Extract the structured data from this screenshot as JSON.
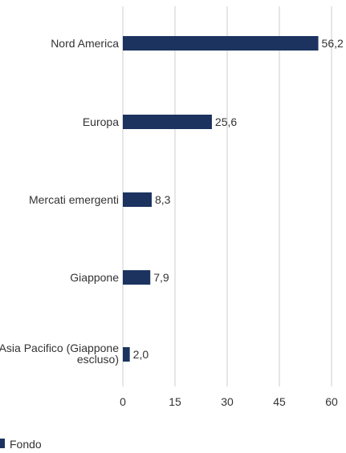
{
  "chart_data": {
    "type": "bar",
    "orientation": "horizontal",
    "title": "",
    "xlabel": "",
    "ylabel": "",
    "categories": [
      "Nord America",
      "Europa",
      "Mercati emergenti",
      "Giappone",
      "Asia Pacifico (Giappone escluso)"
    ],
    "series": [
      {
        "name": "Fondo",
        "values": [
          56.2,
          25.6,
          8.3,
          7.9,
          2.0
        ],
        "value_labels": [
          "56,2",
          "25,6",
          "8,3",
          "7,9",
          "2,0"
        ],
        "color": "#1c3360"
      }
    ],
    "xlim": [
      0,
      60
    ],
    "x_ticks": [
      0,
      15,
      30,
      45,
      60
    ],
    "x_tick_labels": [
      "0",
      "15",
      "30",
      "45",
      "60"
    ],
    "grid": "vertical",
    "grid_color": "#e6e6e6",
    "legend": {
      "position": "bottom-left",
      "entries": [
        "Fondo"
      ]
    }
  }
}
